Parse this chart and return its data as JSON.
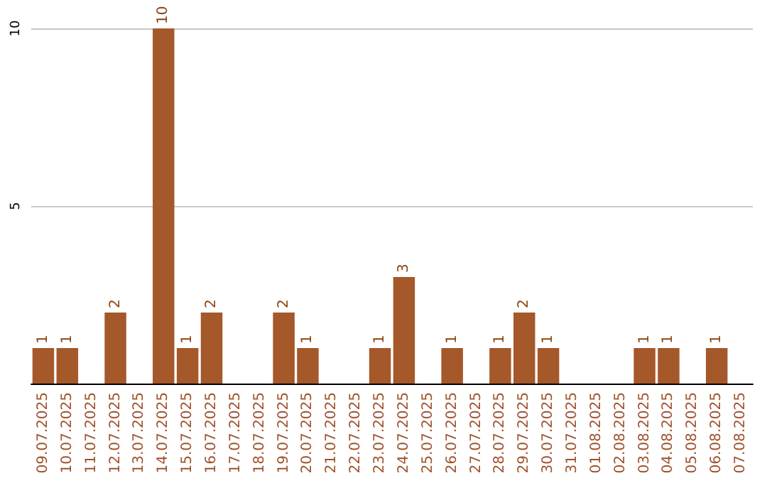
{
  "chart_data": {
    "type": "bar",
    "categories": [
      "09.07.2025",
      "10.07.2025",
      "11.07.2025",
      "12.07.2025",
      "13.07.2025",
      "14.07.2025",
      "15.07.2025",
      "16.07.2025",
      "17.07.2025",
      "18.07.2025",
      "19.07.2025",
      "20.07.2025",
      "21.07.2025",
      "22.07.2025",
      "23.07.2025",
      "24.07.2025",
      "25.07.2025",
      "26.07.2025",
      "27.07.2025",
      "28.07.2025",
      "29.07.2025",
      "30.07.2025",
      "31.07.2025",
      "01.08.2025",
      "02.08.2025",
      "03.08.2025",
      "04.08.2025",
      "05.08.2025",
      "06.08.2025",
      "07.08.2025"
    ],
    "values": [
      1,
      1,
      0,
      2,
      0,
      10,
      1,
      2,
      0,
      0,
      2,
      1,
      0,
      0,
      1,
      3,
      0,
      1,
      0,
      1,
      2,
      1,
      0,
      0,
      0,
      1,
      1,
      0,
      1,
      0
    ],
    "value_labels": [
      "1",
      "1",
      null,
      "2",
      null,
      "10",
      "1",
      "2",
      null,
      null,
      "2",
      "1",
      null,
      null,
      "1",
      "3",
      null,
      "1",
      null,
      "1",
      "2",
      "1",
      null,
      null,
      null,
      "1",
      "1",
      null,
      "1",
      null
    ],
    "color": "#a5582a",
    "ylim": [
      0,
      10
    ],
    "yticks": [
      {
        "value": 0,
        "label": null
      },
      5,
      10
    ],
    "grid": "y"
  }
}
